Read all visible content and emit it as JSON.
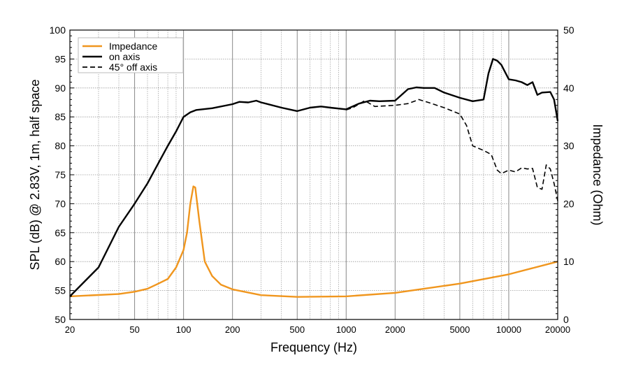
{
  "chart_data": {
    "type": "line",
    "title": "",
    "xlabel": "Frequency (Hz)",
    "ylabel": "SPL (dB) @ 2.83V, 1m, half space",
    "y2label": "Impedance (Ohm)",
    "xscale": "log",
    "xlim": [
      20,
      20000
    ],
    "ylim": [
      50,
      100
    ],
    "y2lim": [
      0,
      50
    ],
    "grid": true,
    "legend_position": "top-left",
    "x_ticks": [
      20,
      50,
      100,
      200,
      500,
      1000,
      2000,
      5000,
      10000,
      20000
    ],
    "y_ticks": [
      50,
      55,
      60,
      65,
      70,
      75,
      80,
      85,
      90,
      95,
      100
    ],
    "y2_ticks": [
      0,
      10,
      20,
      30,
      40,
      50
    ],
    "series": [
      {
        "name": "Impedance",
        "axis": "right",
        "color": "#f0961e",
        "style": "solid",
        "x": [
          20,
          40,
          50,
          60,
          70,
          80,
          90,
          100,
          105,
          110,
          115,
          118,
          125,
          135,
          150,
          170,
          200,
          300,
          500,
          1000,
          2000,
          3000,
          5000,
          10000,
          20000
        ],
        "y": [
          4,
          4.4,
          4.8,
          5.3,
          6.2,
          7,
          9,
          12,
          15,
          20,
          23,
          22.8,
          17,
          10,
          7.5,
          6,
          5.2,
          4.2,
          3.9,
          4.0,
          4.6,
          5.3,
          6.2,
          7.8,
          10
        ]
      },
      {
        "name": "on axis",
        "axis": "left",
        "color": "#000000",
        "style": "solid",
        "x": [
          20,
          30,
          40,
          50,
          60,
          70,
          80,
          90,
          100,
          110,
          120,
          150,
          200,
          220,
          250,
          280,
          300,
          400,
          500,
          600,
          700,
          800,
          1000,
          1200,
          1400,
          1600,
          2000,
          2400,
          2700,
          3000,
          3500,
          4000,
          5000,
          6000,
          7000,
          7500,
          8000,
          8500,
          9000,
          10000,
          11000,
          12000,
          13000,
          14000,
          15000,
          16000,
          18000,
          19000,
          20000
        ],
        "y": [
          54,
          59,
          66,
          70,
          73.5,
          77,
          80,
          82.5,
          85,
          85.8,
          86.2,
          86.5,
          87.2,
          87.6,
          87.5,
          87.8,
          87.5,
          86.6,
          86.0,
          86.6,
          86.8,
          86.6,
          86.3,
          87.3,
          87.8,
          87.7,
          87.8,
          89.8,
          90.1,
          90.0,
          90.0,
          89.2,
          88.3,
          87.7,
          88.0,
          92.5,
          95,
          94.7,
          94,
          91.5,
          91.3,
          91.0,
          90.5,
          91.0,
          88.8,
          89.2,
          89.3,
          88,
          84.3
        ]
      },
      {
        "name": "45° off axis",
        "axis": "left",
        "color": "#000000",
        "style": "dashed",
        "x": [
          1000,
          1100,
          1300,
          1500,
          2000,
          2400,
          2800,
          3200,
          4000,
          5000,
          5500,
          6000,
          7000,
          7800,
          8500,
          9000,
          10000,
          11000,
          12000,
          13000,
          14000,
          15000,
          16000,
          17000,
          18000,
          19000,
          20000
        ],
        "y": [
          86.2,
          86.6,
          87.8,
          86.8,
          87.0,
          87.3,
          88.0,
          87.5,
          86.6,
          85.5,
          83.5,
          80.0,
          79.2,
          78.5,
          75.8,
          75.2,
          75.8,
          75.5,
          76.2,
          76.0,
          76.1,
          72.8,
          72.5,
          76.7,
          76.0,
          73.5,
          70.5
        ]
      }
    ]
  }
}
